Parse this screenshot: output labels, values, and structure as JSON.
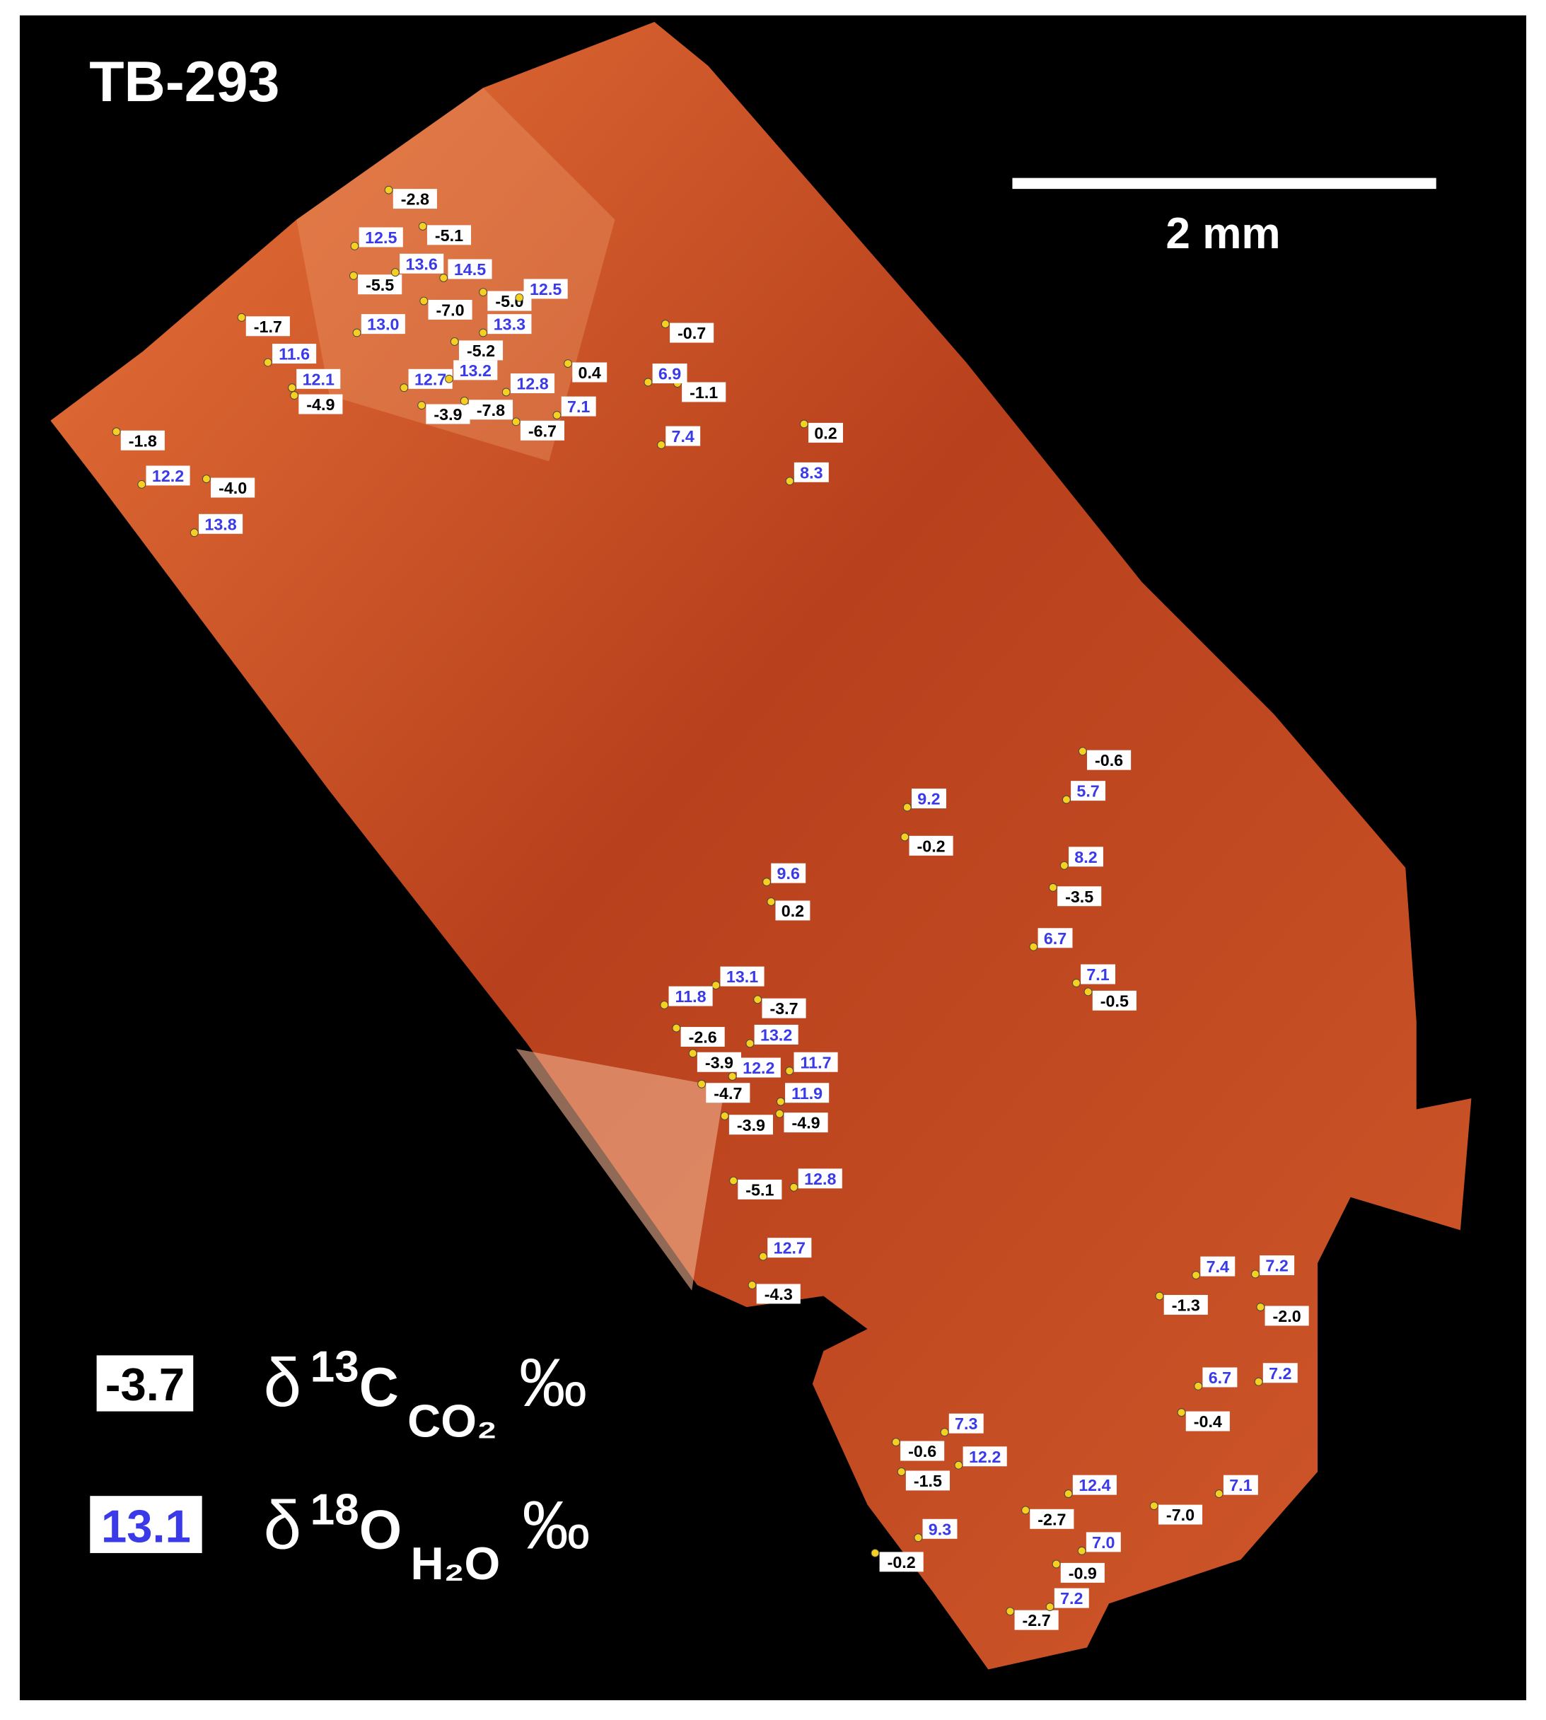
{
  "title": "TB-293",
  "scale_bar": "2 mm",
  "legend": {
    "carbon": {
      "example": "-3.7",
      "symbol": "δ",
      "mass": "13",
      "element": "C",
      "species": "CO₂",
      "unit": "‰"
    },
    "oxygen": {
      "example": "13.1",
      "symbol": "δ",
      "mass": "18",
      "element": "O",
      "species": "H₂O",
      "unit": "‰"
    }
  },
  "carbon_labels": [
    "-2.8",
    "-5.1",
    "-5.5",
    "-7.0",
    "-5.0",
    "-1.7",
    "-5.2",
    "-4.9",
    "-3.9",
    "-7.8",
    "-6.7",
    "0.4",
    "-0.7",
    "-1.1",
    "0.2",
    "-1.8",
    "-4.0",
    "-0.6",
    "-0.2",
    "-3.5",
    "0.2",
    "-0.5",
    "-3.7",
    "-2.6",
    "-3.9",
    "-4.7",
    "-3.9",
    "-4.9",
    "-5.1",
    "-4.3",
    "-1.3",
    "-2.0",
    "-0.4",
    "-0.6",
    "-1.5",
    "-7.0",
    "-2.7",
    "-0.9",
    "-0.2",
    "-2.7"
  ],
  "oxygen_labels": [
    "12.5",
    "13.6",
    "14.5",
    "12.5",
    "13.0",
    "13.3",
    "11.6",
    "12.1",
    "12.7",
    "13.2",
    "12.8",
    "7.1",
    "6.9",
    "7.4",
    "8.3",
    "12.2",
    "13.8",
    "5.7",
    "9.2",
    "8.2",
    "9.6",
    "6.7",
    "7.1",
    "13.1",
    "11.8",
    "13.2",
    "12.2",
    "11.7",
    "11.9",
    "12.8",
    "12.7",
    "7.4",
    "7.2",
    "6.7",
    "7.2",
    "7.3",
    "12.2",
    "7.1",
    "12.4",
    "9.3",
    "7.0",
    "7.2"
  ]
}
